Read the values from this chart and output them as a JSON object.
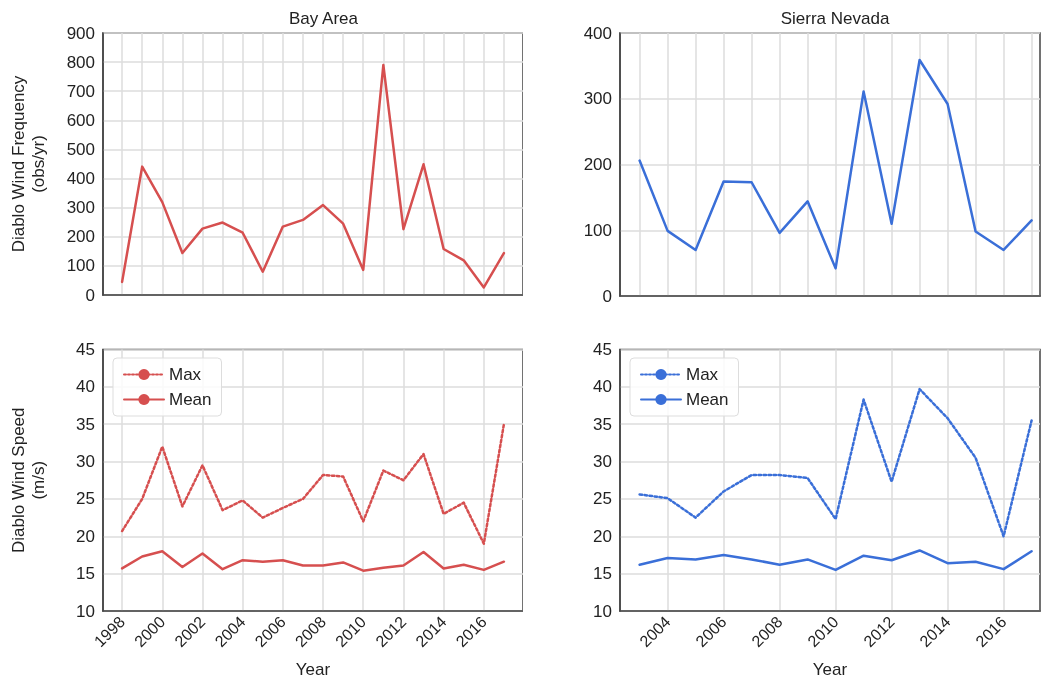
{
  "chart_data": [
    {
      "type": "line",
      "title": "Bay Area",
      "ylabel": "Diablo Wind Frequency\n(obs/yr)",
      "x": [
        1998,
        1999,
        2000,
        2001,
        2002,
        2003,
        2004,
        2005,
        2006,
        2007,
        2008,
        2009,
        2010,
        2011,
        2012,
        2013,
        2014,
        2015,
        2016,
        2017
      ],
      "series": [
        {
          "color": "#d64f4f",
          "line_style": "solid",
          "values": [
            45,
            441,
            319,
            144,
            228,
            249,
            214,
            80,
            235,
            258,
            309,
            245,
            86,
            790,
            226,
            449,
            158,
            119,
            26,
            144
          ]
        }
      ],
      "xlim": [
        1997.05,
        2017.95
      ],
      "xticks": [
        1998,
        1999,
        2000,
        2001,
        2002,
        2003,
        2004,
        2005,
        2006,
        2007,
        2008,
        2009,
        2010,
        2011,
        2012,
        2013,
        2014,
        2015,
        2016,
        2017
      ],
      "ylim": [
        0,
        900
      ],
      "yticks": [
        0,
        100,
        200,
        300,
        400,
        500,
        600,
        700,
        800,
        900
      ],
      "grid": true,
      "tick_labels": "y",
      "legend": false
    },
    {
      "type": "line",
      "title": "Sierra Nevada",
      "x": [
        2003,
        2004,
        2005,
        2006,
        2007,
        2008,
        2009,
        2010,
        2011,
        2012,
        2013,
        2014,
        2015,
        2016,
        2017
      ],
      "series": [
        {
          "color": "#3a6fd8",
          "line_style": "solid",
          "values": [
            206,
            99,
            70,
            174,
            173,
            96,
            144,
            42,
            311,
            110,
            359,
            292,
            98,
            70,
            115
          ]
        }
      ],
      "xlim": [
        2002.3,
        2017.3
      ],
      "xticks": [
        2003,
        2004,
        2005,
        2006,
        2007,
        2008,
        2009,
        2010,
        2011,
        2012,
        2013,
        2014,
        2015,
        2016,
        2017
      ],
      "ylim": [
        0,
        400
      ],
      "yticks": [
        0,
        100,
        200,
        300,
        400
      ],
      "grid": true,
      "tick_labels": "y",
      "legend": false
    },
    {
      "type": "line",
      "xlabel": "Year",
      "ylabel": "Diablo Wind Speed\n(m/s)",
      "x": [
        1998,
        1999,
        2000,
        2001,
        2002,
        2003,
        2004,
        2005,
        2006,
        2007,
        2008,
        2009,
        2010,
        2011,
        2012,
        2013,
        2014,
        2015,
        2016,
        2017
      ],
      "series": [
        {
          "name": "Max",
          "color": "#d64f4f",
          "line_style": "dotted",
          "values": [
            20.7,
            25,
            32,
            24,
            29.5,
            23.5,
            24.8,
            22.5,
            23.8,
            25,
            28.2,
            28,
            22,
            28.8,
            27.5,
            31,
            23,
            24.5,
            19,
            35
          ]
        },
        {
          "name": "Mean",
          "color": "#d64f4f",
          "line_style": "solid",
          "values": [
            15.7,
            17.3,
            18,
            15.9,
            17.7,
            15.6,
            16.8,
            16.6,
            16.8,
            16.1,
            16.1,
            16.5,
            15.4,
            15.8,
            16.1,
            17.9,
            15.7,
            16.2,
            15.5,
            16.6
          ]
        }
      ],
      "xlim": [
        1997.05,
        2017.95
      ],
      "xticks": [
        1998,
        2000,
        2002,
        2004,
        2006,
        2008,
        2010,
        2012,
        2014,
        2016
      ],
      "ylim": [
        10,
        45
      ],
      "yticks": [
        10,
        15,
        20,
        25,
        30,
        35,
        40,
        45
      ],
      "grid": true,
      "legend": "top left"
    },
    {
      "type": "line",
      "xlabel": "Year",
      "x": [
        2003,
        2004,
        2005,
        2006,
        2007,
        2008,
        2009,
        2010,
        2011,
        2012,
        2013,
        2014,
        2015,
        2016,
        2017
      ],
      "series": [
        {
          "name": "Max",
          "color": "#3a6fd8",
          "line_style": "dotted",
          "values": [
            25.6,
            25.1,
            22.5,
            26,
            28.2,
            28.2,
            27.8,
            22.3,
            38.3,
            27.3,
            39.7,
            35.8,
            30.5,
            20,
            35.5
          ]
        },
        {
          "name": "Mean",
          "color": "#3a6fd8",
          "line_style": "solid",
          "values": [
            16.2,
            17.1,
            16.9,
            17.5,
            16.9,
            16.2,
            16.9,
            15.5,
            17.4,
            16.8,
            18.1,
            16.4,
            16.6,
            15.6,
            18
          ]
        }
      ],
      "xlim": [
        2002.3,
        2017.3
      ],
      "xticks": [
        2004,
        2006,
        2008,
        2010,
        2012,
        2014,
        2016
      ],
      "ylim": [
        10,
        45
      ],
      "yticks": [
        10,
        15,
        20,
        25,
        30,
        35,
        40,
        45
      ],
      "grid": true,
      "legend": "top left"
    }
  ]
}
